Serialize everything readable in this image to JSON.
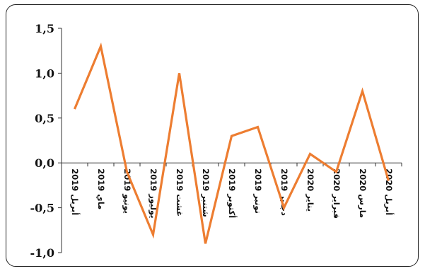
{
  "chart_data": {
    "type": "line",
    "title": "",
    "xlabel": "",
    "ylabel": "",
    "categories": [
      "أبريل 2019",
      "ماي 2019",
      "يونيو 2019",
      "يوليوز 2019",
      "غشت 2019",
      "شتنبر 2019",
      "أكتوبر 2019",
      "نونبر 2019",
      "دجنبر 2019",
      "يناير 2020",
      "فبراير 2020",
      "مارس 2020",
      "أبريل 2020"
    ],
    "series": [
      {
        "values": [
          0.6,
          1.3,
          -0.1,
          -0.8,
          1.0,
          -0.9,
          0.3,
          0.4,
          -0.5,
          0.1,
          -0.1,
          0.8,
          -0.2
        ]
      }
    ],
    "yticks": [
      "1,5",
      "1,0",
      "0,5",
      "0,0",
      "-0,5",
      "-1,0"
    ],
    "ytick_values": [
      1.5,
      1.0,
      0.5,
      0.0,
      -0.5,
      -1.0
    ],
    "ylim": [
      -1.0,
      1.5
    ],
    "grid": false,
    "legend": "none",
    "line_color": "#ED7D31",
    "axis_color": "#333333"
  }
}
